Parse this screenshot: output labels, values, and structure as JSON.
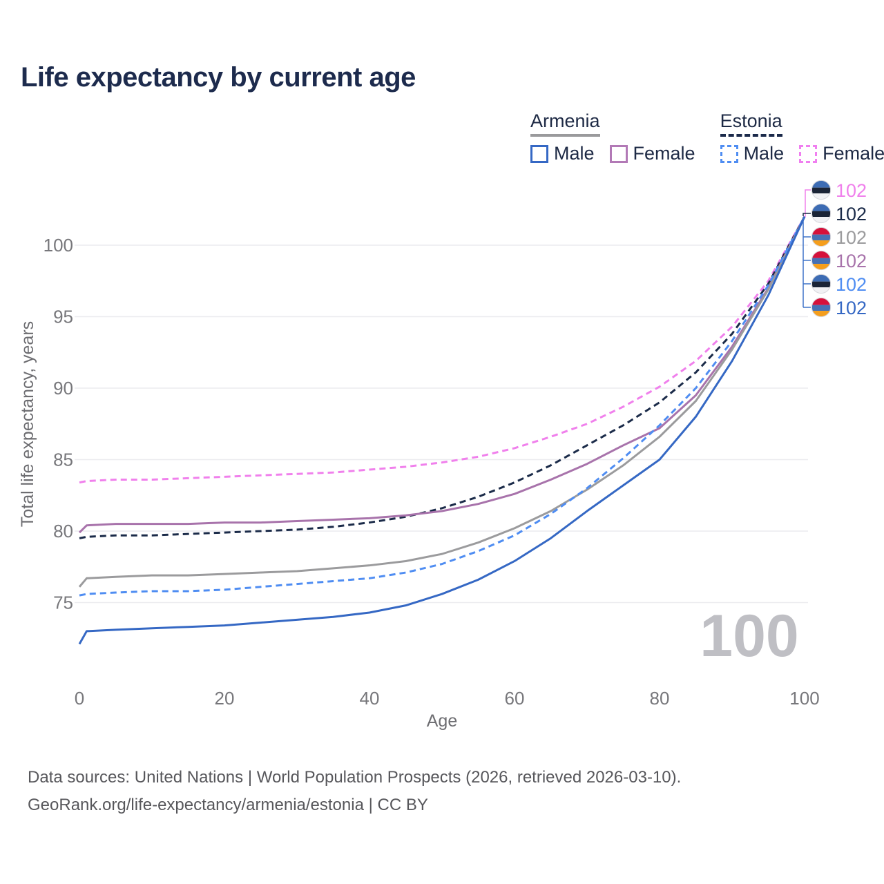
{
  "title": "Life expectancy by current age",
  "legend": {
    "groups": [
      {
        "label": "Armenia",
        "line_style": "solid",
        "line_color": "#9a9a9c",
        "items": [
          {
            "label": "Male",
            "color": "#3568c4",
            "style": "solid"
          },
          {
            "label": "Female",
            "color": "#b279b6",
            "style": "solid"
          }
        ]
      },
      {
        "label": "Estonia",
        "line_style": "dashed",
        "line_color": "#1b2a4a",
        "items": [
          {
            "label": "Male",
            "color": "#4f8df2",
            "style": "dashed"
          },
          {
            "label": "Female",
            "color": "#f07ff0",
            "style": "dashed"
          }
        ]
      }
    ]
  },
  "chart_data": {
    "type": "line",
    "title": "Life expectancy by current age",
    "xlabel": "Age",
    "ylabel": "Total life expectancy, years",
    "xlim": [
      0,
      100
    ],
    "ylim": [
      71,
      103
    ],
    "xticks": [
      0,
      20,
      40,
      60,
      80,
      100
    ],
    "yticks": [
      75,
      80,
      85,
      90,
      95,
      100
    ],
    "grid": "horizontal",
    "legend_position": "top-right",
    "watermark": "100",
    "x": [
      0,
      1,
      5,
      10,
      15,
      20,
      25,
      30,
      35,
      40,
      45,
      50,
      55,
      60,
      65,
      70,
      75,
      80,
      85,
      90,
      95,
      100
    ],
    "series": [
      {
        "name": "Estonia Female",
        "country": "Estonia",
        "group": "Female",
        "style": "dashed",
        "color": "#f080ec",
        "values": [
          83.4,
          83.5,
          83.6,
          83.6,
          83.7,
          83.8,
          83.9,
          84.0,
          84.1,
          84.3,
          84.5,
          84.8,
          85.2,
          85.8,
          86.6,
          87.5,
          88.7,
          90.1,
          91.9,
          94.3,
          97.5,
          102
        ]
      },
      {
        "name": "Estonia (all)",
        "country": "Estonia",
        "group": "All",
        "style": "dashed",
        "color": "#1b2b49",
        "values": [
          79.5,
          79.6,
          79.7,
          79.7,
          79.8,
          79.9,
          80.0,
          80.1,
          80.3,
          80.6,
          81.0,
          81.6,
          82.4,
          83.4,
          84.6,
          86.0,
          87.4,
          89.0,
          91.1,
          93.8,
          97.3,
          102
        ]
      },
      {
        "name": "Armenia Female",
        "country": "Armenia",
        "group": "Female",
        "style": "solid",
        "color": "#a873ab",
        "values": [
          79.9,
          80.4,
          80.5,
          80.5,
          80.5,
          80.6,
          80.6,
          80.7,
          80.8,
          80.9,
          81.1,
          81.4,
          81.9,
          82.6,
          83.6,
          84.7,
          86.0,
          87.2,
          89.5,
          92.9,
          97.0,
          102
        ]
      },
      {
        "name": "Armenia (all)",
        "country": "Armenia",
        "group": "All",
        "style": "solid",
        "color": "#9b9b9d",
        "values": [
          76.1,
          76.7,
          76.8,
          76.9,
          76.9,
          77.0,
          77.1,
          77.2,
          77.4,
          77.6,
          77.9,
          78.4,
          79.2,
          80.2,
          81.4,
          82.9,
          84.6,
          86.6,
          89.1,
          92.7,
          96.9,
          102
        ]
      },
      {
        "name": "Estonia Male",
        "country": "Estonia",
        "group": "Male",
        "style": "dashed",
        "color": "#4f8df2",
        "values": [
          75.5,
          75.6,
          75.7,
          75.8,
          75.8,
          75.9,
          76.1,
          76.3,
          76.5,
          76.7,
          77.1,
          77.7,
          78.6,
          79.7,
          81.2,
          83.0,
          85.1,
          87.4,
          90.0,
          93.3,
          97.2,
          102
        ]
      },
      {
        "name": "Armenia Male",
        "country": "Armenia",
        "group": "Male",
        "style": "solid",
        "color": "#3568c4",
        "values": [
          72.1,
          73.0,
          73.1,
          73.2,
          73.3,
          73.4,
          73.6,
          73.8,
          74.0,
          74.3,
          74.8,
          75.6,
          76.6,
          77.9,
          79.5,
          81.4,
          83.2,
          85.0,
          88.0,
          91.9,
          96.5,
          102
        ]
      }
    ],
    "end_labels": [
      {
        "flag": "estonia",
        "value": "102",
        "color": "#f080ec"
      },
      {
        "flag": "estonia",
        "value": "102",
        "color": "#1b2b49"
      },
      {
        "flag": "armenia",
        "value": "102",
        "color": "#9b9b9d"
      },
      {
        "flag": "armenia",
        "value": "102",
        "color": "#a873ab"
      },
      {
        "flag": "estonia",
        "value": "102",
        "color": "#4f8df2"
      },
      {
        "flag": "armenia",
        "value": "102",
        "color": "#3568c4"
      }
    ],
    "flags": {
      "estonia": [
        "#3d6cb4",
        "#1b2436",
        "#f1f1f4"
      ],
      "armenia": [
        "#d5113b",
        "#4671b5",
        "#f59e1c"
      ]
    }
  },
  "footer": {
    "line1": "Data sources: United Nations | World Population Prospects (2026, retrieved 2026-03-10).",
    "line2": "GeoRank.org/life-expectancy/armenia/estonia | CC BY"
  }
}
